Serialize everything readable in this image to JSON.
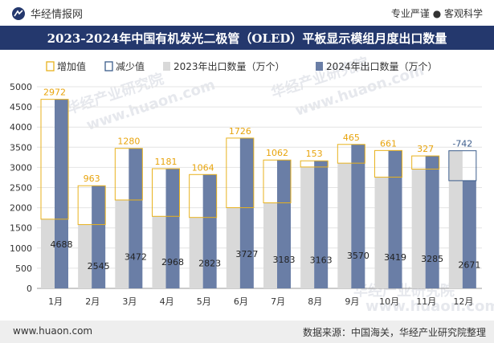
{
  "header": {
    "brand": "华经情报网",
    "tagline": "专业严谨 ● 客观科学"
  },
  "title": "2023-2024年中国有机发光二极管（OLED）平板显示模组月度出口数量",
  "footer": {
    "website": "www.huaon.com",
    "source": "数据来源：中国海关，华经产业研究院整理"
  },
  "watermark": {
    "text1": "华经产业研究院",
    "text2": "www.huaon.com"
  },
  "colors": {
    "bar2023": "#d9d9d9",
    "bar2024": "#6a7ea6",
    "increase": "#e8b21e",
    "decrease": "#3c5d8c",
    "titlebar": "#24386d"
  },
  "chart_data": {
    "type": "bar",
    "categories": [
      "1月",
      "2月",
      "3月",
      "4月",
      "5月",
      "6月",
      "7月",
      "8月",
      "9月",
      "10月",
      "11月",
      "12月"
    ],
    "series": [
      {
        "name": "2023年出口数量（万个）",
        "values": [
          1716,
          1582,
          2192,
          1787,
          1759,
          2001,
          2121,
          3010,
          3105,
          2758,
          2958,
          3413
        ]
      },
      {
        "name": "2024年出口数量（万个）",
        "values": [
          4688,
          2545,
          3472,
          2968,
          2823,
          3727,
          3183,
          3163,
          3570,
          3419,
          3285,
          2671
        ]
      }
    ],
    "differences": [
      2972,
      963,
      1280,
      1181,
      1064,
      1726,
      1062,
      153,
      465,
      661,
      327,
      -742
    ],
    "legend": [
      "增加值",
      "减少值",
      "2023年出口数量（万个）",
      "2024年出口数量（万个）"
    ],
    "yticks": [
      "0",
      "500",
      "1000",
      "1500",
      "2000",
      "2500",
      "3000",
      "3500",
      "4000",
      "4500",
      "5000"
    ],
    "ylim": [
      0,
      5000
    ],
    "xlabel": "",
    "ylabel": ""
  }
}
